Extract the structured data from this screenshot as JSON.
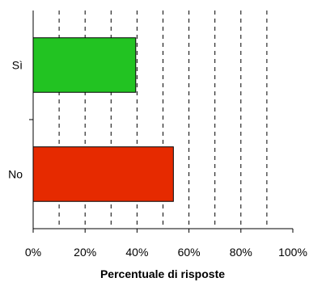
{
  "chart_data": {
    "type": "bar",
    "orientation": "horizontal",
    "title": "",
    "categories": [
      "Sì",
      "No"
    ],
    "values": [
      39.5,
      54
    ],
    "unit": "%",
    "xlabel": "Percentuale di risposte",
    "ylabel": "",
    "xlim": [
      0,
      100
    ],
    "x_ticks": [
      0,
      20,
      40,
      60,
      80,
      100
    ],
    "x_tick_labels": [
      "0%",
      "20%",
      "40%",
      "60%",
      "80%",
      "100%"
    ],
    "grid": "vertical dashed",
    "legend": "none",
    "colors": [
      "#22c322",
      "#e62a00"
    ]
  }
}
